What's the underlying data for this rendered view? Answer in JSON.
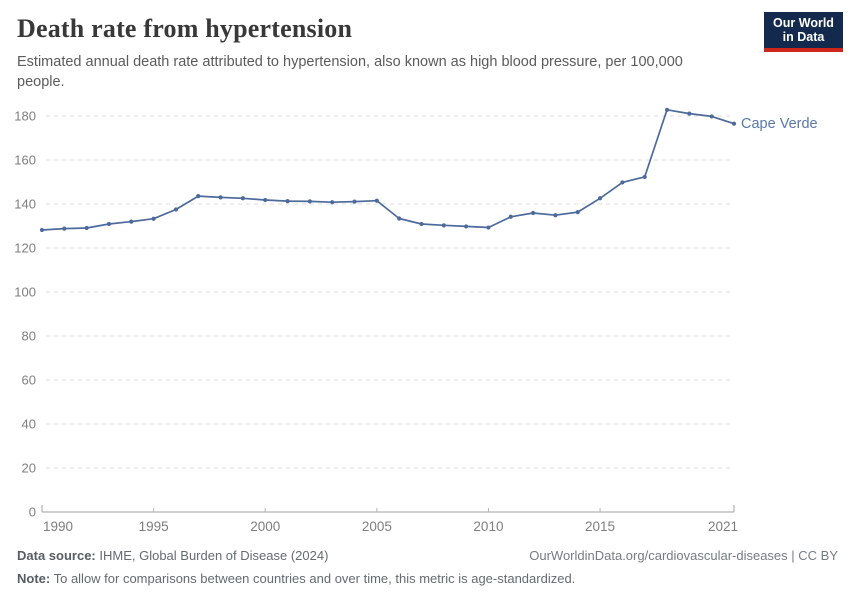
{
  "header": {
    "title": "Death rate from hypertension",
    "subtitle": "Estimated annual death rate attributed to hypertension, also known as high blood pressure, per 100,000 people.",
    "logo": {
      "line1": "Our World",
      "line2": "in Data",
      "bg_color": "#132A4E",
      "accent_color": "#CE261B"
    }
  },
  "chart_data": {
    "type": "line",
    "title": "Death rate from hypertension",
    "xlabel": "",
    "ylabel": "",
    "x": [
      1990,
      1991,
      1992,
      1993,
      1994,
      1995,
      1996,
      1997,
      1998,
      1999,
      2000,
      2001,
      2002,
      2003,
      2004,
      2005,
      2006,
      2007,
      2008,
      2009,
      2010,
      2011,
      2012,
      2013,
      2014,
      2015,
      2016,
      2017,
      2018,
      2019,
      2020,
      2021
    ],
    "series": [
      {
        "name": "Cape Verde",
        "color": "#4C6A9C",
        "values": [
          128.2,
          128.8,
          129.1,
          130.9,
          132.0,
          133.3,
          137.5,
          143.6,
          143.0,
          142.6,
          141.8,
          141.3,
          141.2,
          140.8,
          141.1,
          141.5,
          133.4,
          130.9,
          130.3,
          129.8,
          129.3,
          134.2,
          135.9,
          134.9,
          136.3,
          142.6,
          149.8,
          152.3,
          182.8,
          181.1,
          179.8,
          176.5
        ]
      }
    ],
    "end_label": "Cape Verde",
    "x_ticks": [
      1990,
      1995,
      2000,
      2005,
      2010,
      2015,
      2021
    ],
    "y_ticks": [
      0,
      20,
      40,
      60,
      80,
      100,
      120,
      140,
      160,
      180
    ],
    "xlim": [
      1990,
      2021
    ],
    "ylim": [
      0,
      180
    ],
    "grid": "dashed-horizontal",
    "legend_position": "end-of-line"
  },
  "footer": {
    "source_label": "Data source:",
    "source_text": " IHME, Global Burden of Disease (2024)",
    "link_text": "OurWorldinData.org/cardiovascular-diseases | CC BY",
    "note_label": "Note:",
    "note_text": " To allow for comparisons between countries and over time, this metric is age-standardized."
  }
}
